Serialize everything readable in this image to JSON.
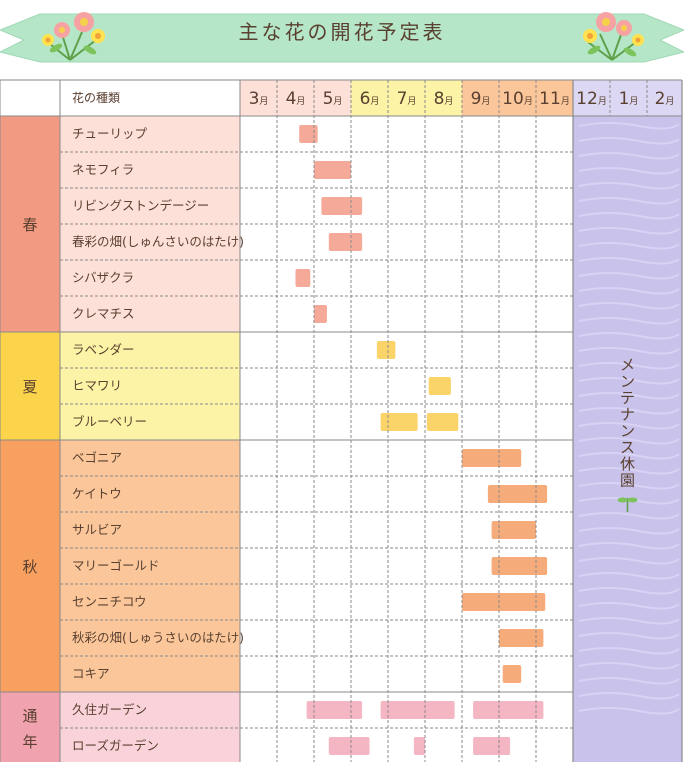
{
  "title": "主な花の開花予定表",
  "header_flower_label": "花の種類",
  "months": [
    {
      "num": "3",
      "unit": "月"
    },
    {
      "num": "4",
      "unit": "月"
    },
    {
      "num": "5",
      "unit": "月"
    },
    {
      "num": "6",
      "unit": "月"
    },
    {
      "num": "7",
      "unit": "月"
    },
    {
      "num": "8",
      "unit": "月"
    },
    {
      "num": "9",
      "unit": "月"
    },
    {
      "num": "10",
      "unit": "月"
    },
    {
      "num": "11",
      "unit": "月"
    },
    {
      "num": "12",
      "unit": "月"
    },
    {
      "num": "1",
      "unit": "月"
    },
    {
      "num": "2",
      "unit": "月"
    }
  ],
  "colors": {
    "spring": "#f39a82",
    "spring_light": "#fde0d8",
    "summer": "#fbd44b",
    "summer_light": "#fdf3a6",
    "autumn": "#f7a060",
    "autumn_light": "#fbc79a",
    "year": "#f0a2ae",
    "year_light": "#f9d2da",
    "maintenance": "#c9c3ec",
    "bar_spring": "#f3a494",
    "bar_summer": "#fad260",
    "bar_autumn": "#f5a873",
    "bar_year": "#f4b2c0"
  },
  "maintenance_label": "メンテナンス休園",
  "chart_data": {
    "type": "table",
    "x_unit": "month (fractional position within a Mar–Feb season)",
    "groups": [
      {
        "key": "spring",
        "label": "春",
        "items": [
          {
            "name": "チューリップ",
            "bars": [
              [
                4.6,
                5.1
              ]
            ]
          },
          {
            "name": "ネモフィラ",
            "bars": [
              [
                5.0,
                6.0
              ]
            ]
          },
          {
            "name": "リビングストンデージー",
            "bars": [
              [
                5.2,
                6.3
              ]
            ]
          },
          {
            "name": "春彩の畑(しゅんさいのはたけ)",
            "bars": [
              [
                5.4,
                6.3
              ]
            ]
          },
          {
            "name": "シバザクラ",
            "bars": [
              [
                4.5,
                4.9
              ]
            ]
          },
          {
            "name": "クレマチス",
            "bars": [
              [
                5.0,
                5.35
              ]
            ]
          }
        ]
      },
      {
        "key": "summer",
        "label": "夏",
        "items": [
          {
            "name": "ラベンダー",
            "bars": [
              [
                6.7,
                7.2
              ]
            ]
          },
          {
            "name": "ヒマワリ",
            "bars": [
              [
                8.1,
                8.7
              ]
            ]
          },
          {
            "name": "ブルーベリー",
            "bars": [
              [
                6.8,
                7.8
              ],
              [
                8.05,
                8.9
              ]
            ]
          }
        ]
      },
      {
        "key": "autumn",
        "label": "秋",
        "items": [
          {
            "name": "ベゴニア",
            "bars": [
              [
                9.0,
                10.6
              ]
            ]
          },
          {
            "name": "ケイトウ",
            "bars": [
              [
                9.7,
                11.3
              ]
            ]
          },
          {
            "name": "サルビア",
            "bars": [
              [
                9.8,
                11.0
              ]
            ]
          },
          {
            "name": "マリーゴールド",
            "bars": [
              [
                9.8,
                11.3
              ]
            ]
          },
          {
            "name": "センニチコウ",
            "bars": [
              [
                9.0,
                11.25
              ]
            ]
          },
          {
            "name": "秋彩の畑(しゅうさいのはたけ)",
            "bars": [
              [
                10.0,
                11.2
              ]
            ]
          },
          {
            "name": "コキア",
            "bars": [
              [
                10.1,
                10.6
              ]
            ]
          }
        ]
      },
      {
        "key": "year",
        "label": "通年",
        "items": [
          {
            "name": "久住ガーデン",
            "bars": [
              [
                4.8,
                6.3
              ],
              [
                6.8,
                8.8
              ],
              [
                9.3,
                11.2
              ]
            ]
          },
          {
            "name": "ローズガーデン",
            "bars": [
              [
                5.4,
                6.5
              ],
              [
                7.7,
                8.0
              ],
              [
                9.3,
                10.3
              ]
            ]
          }
        ]
      }
    ],
    "maintenance_months": [
      "12",
      "1",
      "2"
    ]
  }
}
